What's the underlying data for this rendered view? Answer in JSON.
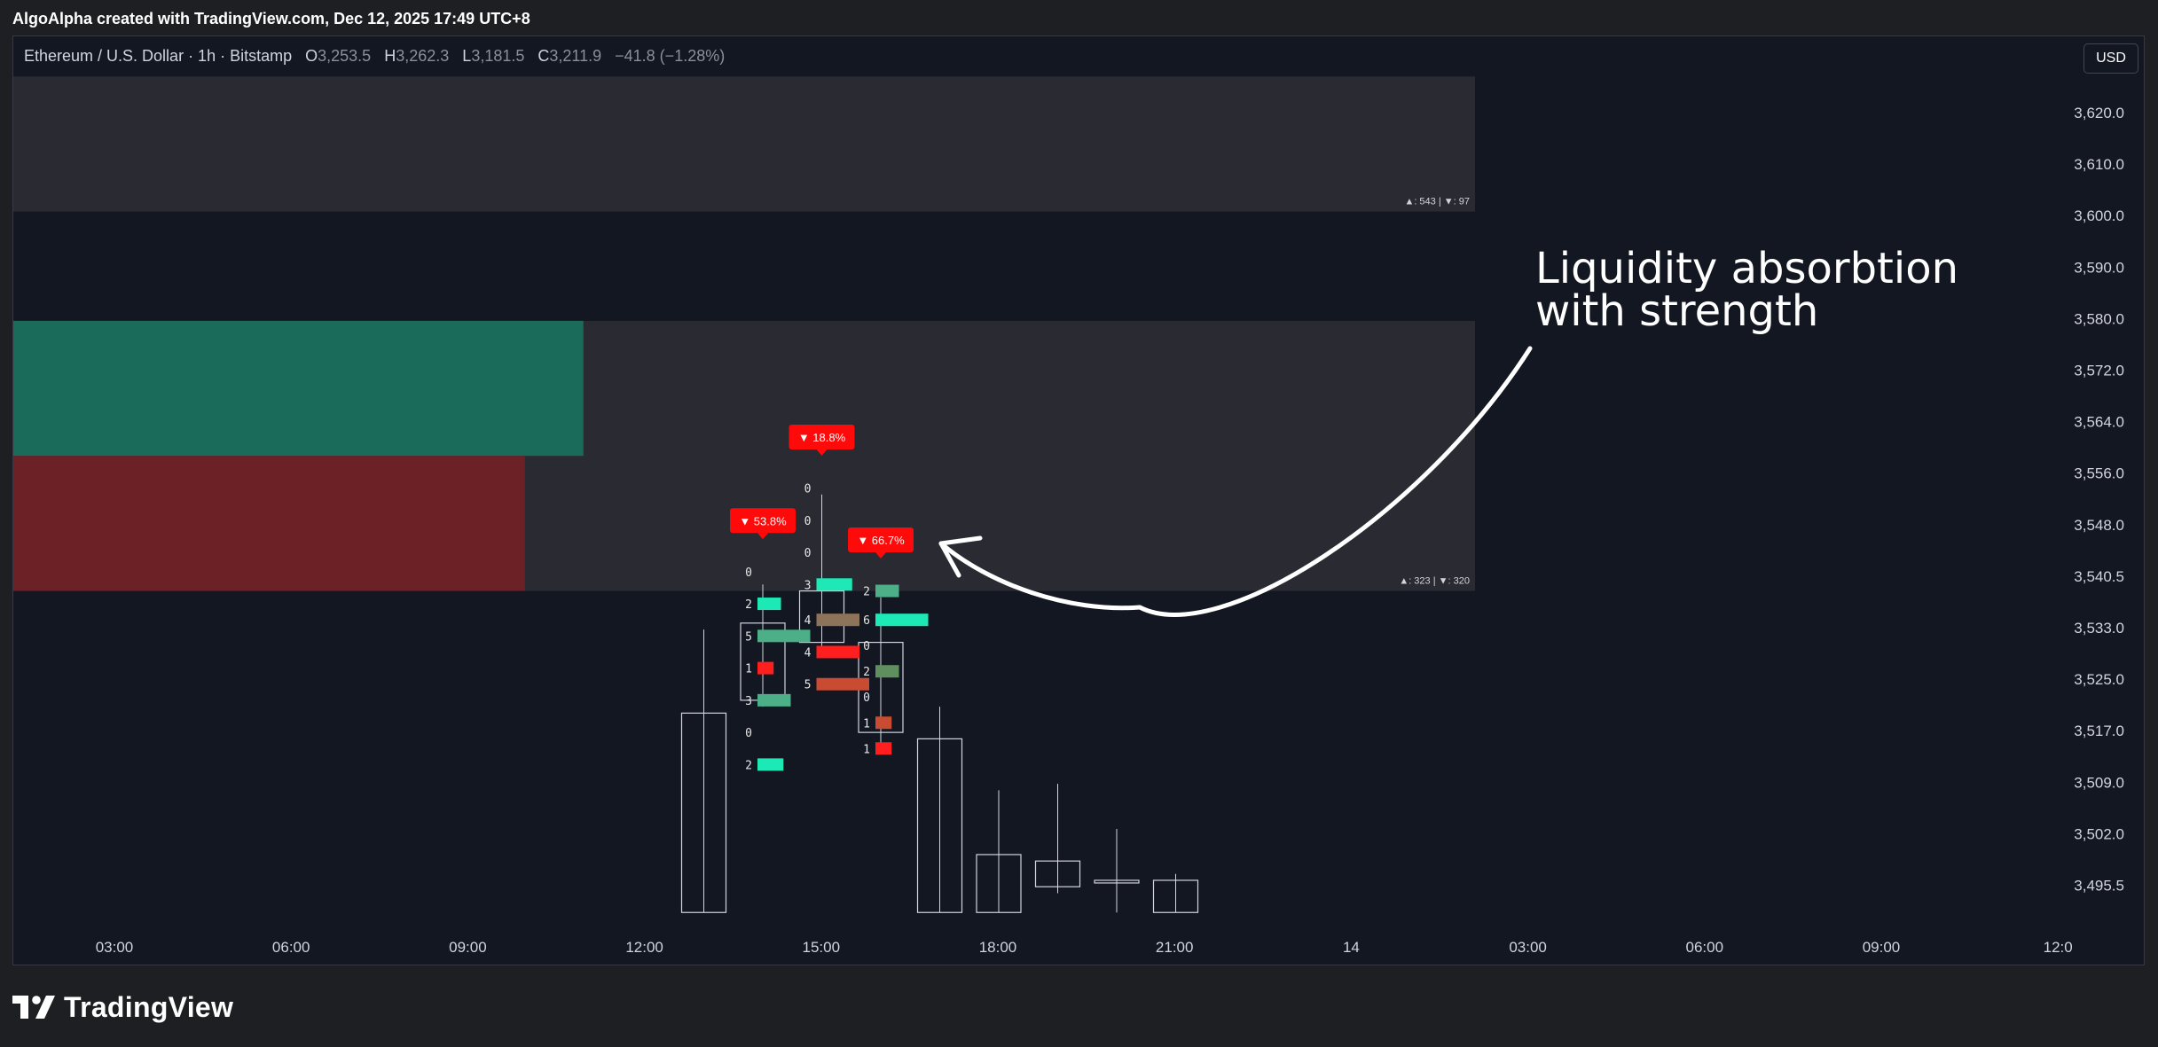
{
  "caption": "AlgoAlpha created with TradingView.com, Dec 12, 2025 17:49 UTC+8",
  "symbol": {
    "name": "Ethereum / U.S. Dollar · 1h · Bitstamp",
    "open_label": "O",
    "open": "3,253.5",
    "high_label": "H",
    "high": "3,262.3",
    "low_label": "L",
    "low": "3,181.5",
    "close_label": "C",
    "close": "3,211.9",
    "change": "−41.8 (−1.28%)"
  },
  "currency_button": "USD",
  "annotation": {
    "line1": "Liquidity absorbtion",
    "line2": "with strength"
  },
  "zone_labels": {
    "upper": "▲: 543 | ▼: 97",
    "lower": "▲: 323 | ▼: 320"
  },
  "brand": "TradingView",
  "colors": {
    "background": "#131722",
    "zone_fill": "#2a2a33",
    "bull_bar": "#1a6b5a",
    "bear_bar": "#6b2126",
    "signal_red": "#ff0a0a",
    "teal": "#1de9b6",
    "annotation": "#ffffff"
  },
  "chart_data": {
    "type": "candlestick",
    "y_axis": {
      "ticks": [
        "3,620.0",
        "3,610.0",
        "3,600.0",
        "3,590.0",
        "3,580.0",
        "3,572.0",
        "3,564.0",
        "3,556.0",
        "3,548.0",
        "3,540.5",
        "3,533.0",
        "3,525.0",
        "3,517.0",
        "3,509.0",
        "3,502.0",
        "3,495.5"
      ]
    },
    "x_axis": {
      "ticks": [
        "03:00",
        "06:00",
        "09:00",
        "12:00",
        "15:00",
        "18:00",
        "21:00",
        "14",
        "03:00",
        "06:00",
        "09:00",
        "12:0"
      ]
    },
    "candles": [
      {
        "time": "13:00",
        "open": 3526,
        "high": 3539,
        "low": 3495,
        "close": 3495
      },
      {
        "time": "14:00",
        "open": 3540,
        "high": 3546,
        "low": 3527,
        "close": 3528
      },
      {
        "time": "15:00",
        "open": 3545,
        "high": 3560,
        "low": 3535,
        "close": 3537
      },
      {
        "time": "16:00",
        "open": 3537,
        "high": 3544,
        "low": 3521,
        "close": 3523
      },
      {
        "time": "17:00",
        "open": 3522,
        "high": 3527,
        "low": 3495,
        "close": 3495
      },
      {
        "time": "18:00",
        "open": 3504,
        "high": 3514,
        "low": 3495,
        "close": 3495
      },
      {
        "time": "19:00",
        "open": 3503,
        "high": 3515,
        "low": 3498,
        "close": 3499
      },
      {
        "time": "20:00",
        "open": 3500,
        "high": 3508,
        "low": 3495,
        "close": 3500
      },
      {
        "time": "21:00",
        "open": 3500,
        "high": 3501,
        "low": 3495,
        "close": 3495
      }
    ],
    "signals": [
      {
        "time": "14:00",
        "label": "▼ 53.8%",
        "price": 3554
      },
      {
        "time": "15:00",
        "label": "▼ 18.8%",
        "price": 3567
      },
      {
        "time": "16:00",
        "label": "▼ 66.7%",
        "price": 3551
      }
    ],
    "footprint": [
      {
        "time": "14:00",
        "rows": [
          {
            "price": 3548,
            "count": "0",
            "kind": "none"
          },
          {
            "price": 3543,
            "count": "2",
            "kind": "teal",
            "size": 0.3
          },
          {
            "price": 3538,
            "count": "5",
            "kind": "green",
            "size": 0.9
          },
          {
            "price": 3533,
            "count": "1",
            "kind": "red",
            "size": 0.15
          },
          {
            "price": 3528,
            "count": "3",
            "kind": "green",
            "size": 0.5
          },
          {
            "price": 3523,
            "count": "0",
            "kind": "none"
          },
          {
            "price": 3518,
            "count": "2",
            "kind": "teal",
            "size": 0.35
          }
        ]
      },
      {
        "time": "15:00",
        "rows": [
          {
            "price": 3561,
            "count": "0",
            "kind": "none"
          },
          {
            "price": 3556,
            "count": "0",
            "kind": "none"
          },
          {
            "price": 3551,
            "count": "0",
            "kind": "none"
          },
          {
            "price": 3546,
            "count": "3",
            "kind": "teal",
            "size": 0.55
          },
          {
            "price": 3540.5,
            "count": "4",
            "kind": "brown",
            "size": 0.7
          },
          {
            "price": 3535.5,
            "count": "4",
            "kind": "red",
            "size": 0.7
          },
          {
            "price": 3530.5,
            "count": "5",
            "kind": "orange",
            "size": 0.9
          }
        ]
      },
      {
        "time": "16:00",
        "rows": [
          {
            "price": 3545,
            "count": "2",
            "kind": "green",
            "size": 0.3
          },
          {
            "price": 3540.5,
            "count": "6",
            "kind": "teal",
            "size": 0.9
          },
          {
            "price": 3536.5,
            "count": "0",
            "kind": "none"
          },
          {
            "price": 3532.5,
            "count": "2",
            "kind": "olive",
            "size": 0.3
          },
          {
            "price": 3528.5,
            "count": "0",
            "kind": "none"
          },
          {
            "price": 3524.5,
            "count": "1",
            "kind": "orange",
            "size": 0.15
          },
          {
            "price": 3520.5,
            "count": "1",
            "kind": "red",
            "size": 0.15
          }
        ]
      }
    ],
    "zones": [
      {
        "name": "upper",
        "top": 3625,
        "bottom": 3604,
        "label_key": "upper"
      },
      {
        "name": "lower",
        "top": 3587,
        "bottom": 3545,
        "label_key": "lower",
        "bull_fraction": 0.39,
        "bear_fraction": 0.35
      }
    ],
    "ylim": [
      3492,
      3626
    ]
  }
}
